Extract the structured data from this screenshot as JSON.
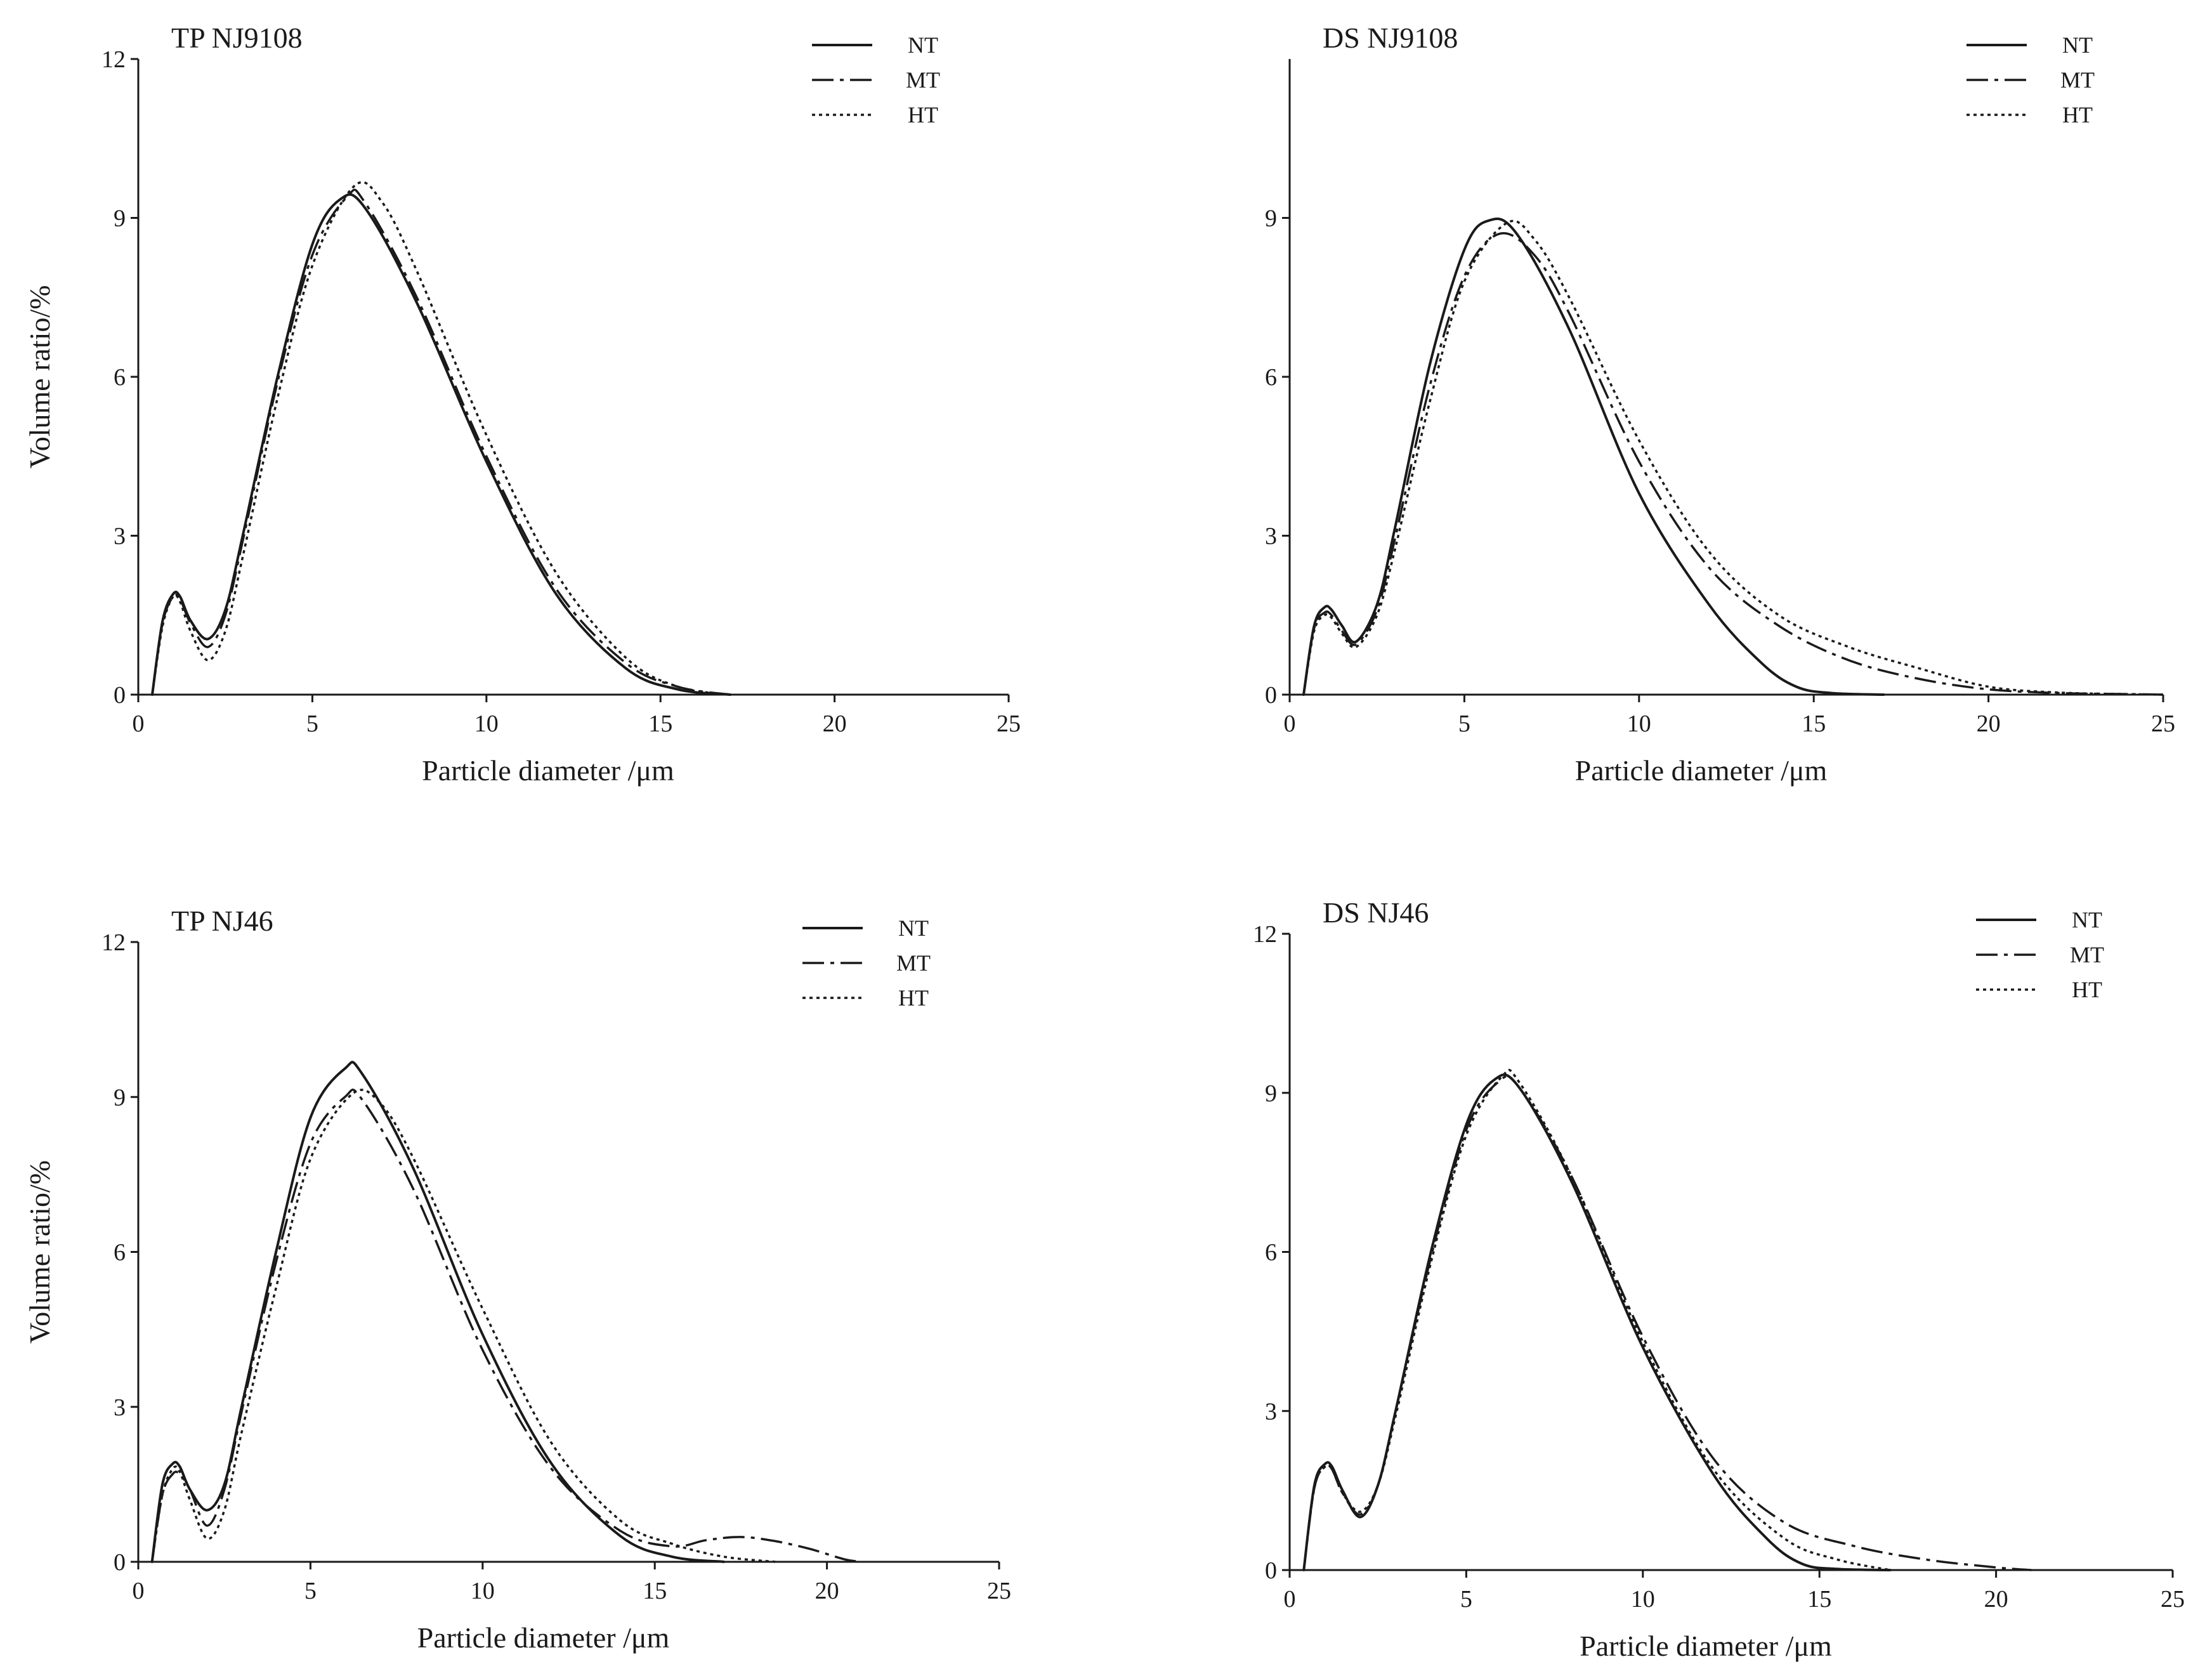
{
  "figure": {
    "panels": [
      "TP NJ9108",
      "DS NJ9108",
      "TP NJ46",
      "DS NJ46"
    ]
  },
  "styles": {
    "line_color": "#1a1a1a",
    "background": "#ffffff"
  },
  "chart_data": [
    {
      "type": "line",
      "title": "TP NJ9108",
      "xlabel": "Particle diameter /μm",
      "ylabel": "Volume ratio/%",
      "xlim": [
        0,
        25
      ],
      "ylim": [
        0,
        12
      ],
      "xticks": [
        0,
        5,
        10,
        15,
        20,
        25
      ],
      "yticks": [
        0,
        3,
        6,
        9,
        12
      ],
      "legend": {
        "placement": "top-right",
        "entries": [
          "NT",
          "MT",
          "HT"
        ]
      },
      "series": [
        {
          "name": "NT",
          "style": "solid",
          "x": [
            0.4,
            0.7,
            1.0,
            1.2,
            1.5,
            2.0,
            2.5,
            3.0,
            4.0,
            5.0,
            5.8,
            6.5,
            8.0,
            10.0,
            12.0,
            14.0,
            15.5,
            17.0
          ],
          "y": [
            0,
            1.4,
            1.9,
            1.85,
            1.4,
            1.05,
            1.6,
            3.0,
            6.0,
            8.5,
            9.35,
            9.2,
            7.4,
            4.4,
            1.9,
            0.5,
            0.1,
            0
          ]
        },
        {
          "name": "MT",
          "style": "dashdot",
          "x": [
            0.4,
            0.7,
            1.0,
            1.2,
            1.5,
            2.0,
            2.5,
            3.0,
            4.0,
            5.0,
            6.0,
            6.5,
            8.0,
            10.0,
            12.0,
            14.0,
            15.5,
            17.0
          ],
          "y": [
            0,
            1.35,
            1.85,
            1.8,
            1.35,
            0.9,
            1.5,
            2.9,
            5.9,
            8.3,
            9.4,
            9.3,
            7.5,
            4.5,
            2.0,
            0.6,
            0.15,
            0
          ]
        },
        {
          "name": "HT",
          "style": "dotted",
          "x": [
            0.4,
            0.7,
            1.0,
            1.2,
            1.5,
            2.0,
            2.5,
            3.0,
            4.0,
            5.0,
            6.2,
            7.0,
            8.0,
            10.0,
            12.0,
            14.0,
            15.5,
            17.0
          ],
          "y": [
            0,
            1.3,
            1.85,
            1.75,
            1.2,
            0.65,
            1.2,
            2.6,
            5.6,
            8.1,
            9.6,
            9.3,
            8.0,
            4.9,
            2.3,
            0.7,
            0.15,
            0
          ]
        }
      ]
    },
    {
      "type": "line",
      "title": "DS NJ9108",
      "xlabel": "Particle diameter /μm",
      "ylabel": "",
      "xlim": [
        0,
        25
      ],
      "ylim": [
        0,
        12
      ],
      "xticks": [
        0,
        5,
        10,
        15,
        20,
        25
      ],
      "yticks": [
        0,
        3,
        6,
        9
      ],
      "legend": {
        "placement": "top-right",
        "entries": [
          "NT",
          "MT",
          "HT"
        ]
      },
      "series": [
        {
          "name": "NT",
          "style": "solid",
          "x": [
            0.4,
            0.7,
            1.0,
            1.2,
            1.5,
            1.9,
            2.5,
            3.0,
            4.0,
            5.0,
            5.7,
            6.5,
            8.0,
            10.0,
            12.0,
            13.5,
            14.5,
            15.5,
            17.0
          ],
          "y": [
            0,
            1.3,
            1.65,
            1.6,
            1.3,
            1.0,
            1.7,
            3.1,
            6.2,
            8.4,
            8.95,
            8.7,
            6.9,
            3.8,
            1.7,
            0.6,
            0.15,
            0.03,
            0
          ]
        },
        {
          "name": "MT",
          "style": "dashdot",
          "x": [
            0.4,
            0.7,
            1.0,
            1.2,
            1.5,
            1.9,
            2.5,
            3.0,
            4.0,
            5.0,
            6.0,
            7.0,
            8.0,
            10.0,
            12.0,
            14.0,
            16.0,
            18.0,
            20.0,
            22.0,
            24.0,
            25.0
          ],
          "y": [
            0,
            1.25,
            1.55,
            1.5,
            1.2,
            0.95,
            1.6,
            2.9,
            5.8,
            7.9,
            8.7,
            8.3,
            7.2,
            4.4,
            2.4,
            1.3,
            0.65,
            0.3,
            0.1,
            0.03,
            0.01,
            0
          ]
        },
        {
          "name": "HT",
          "style": "dotted",
          "x": [
            0.4,
            0.7,
            1.0,
            1.2,
            1.5,
            1.9,
            2.5,
            3.0,
            4.0,
            5.0,
            6.2,
            7.0,
            8.0,
            10.0,
            12.0,
            14.0,
            16.0,
            18.0,
            20.0,
            22.0,
            24.0,
            25.0
          ],
          "y": [
            0,
            1.2,
            1.5,
            1.45,
            1.15,
            0.9,
            1.5,
            2.7,
            5.5,
            7.8,
            8.9,
            8.6,
            7.5,
            4.8,
            2.7,
            1.5,
            0.9,
            0.5,
            0.15,
            0.04,
            0.01,
            0
          ]
        }
      ]
    },
    {
      "type": "line",
      "title": "TP NJ46",
      "xlabel": "Particle diameter /μm",
      "ylabel": "Volume ratio/%",
      "xlim": [
        0,
        25
      ],
      "ylim": [
        0,
        12
      ],
      "xticks": [
        0,
        5,
        10,
        15,
        20,
        25
      ],
      "yticks": [
        0,
        3,
        6,
        9,
        12
      ],
      "legend": {
        "placement": "top-right",
        "entries": [
          "NT",
          "MT",
          "HT"
        ]
      },
      "series": [
        {
          "name": "NT",
          "style": "solid",
          "x": [
            0.4,
            0.7,
            1.0,
            1.2,
            1.5,
            2.0,
            2.5,
            3.0,
            4.0,
            5.0,
            6.0,
            6.5,
            8.0,
            10.0,
            12.0,
            14.0,
            15.5,
            17.0
          ],
          "y": [
            0,
            1.5,
            1.9,
            1.85,
            1.4,
            1.0,
            1.5,
            3.0,
            6.0,
            8.6,
            9.55,
            9.45,
            7.6,
            4.4,
            1.9,
            0.5,
            0.1,
            0
          ]
        },
        {
          "name": "MT",
          "style": "dashdot",
          "x": [
            0.4,
            0.7,
            1.0,
            1.2,
            1.5,
            2.0,
            2.5,
            3.0,
            4.0,
            5.0,
            6.0,
            6.5,
            8.0,
            10.0,
            12.0,
            14.0,
            15.5,
            16.5,
            17.5,
            18.5,
            19.5,
            20.5,
            21.0
          ],
          "y": [
            0,
            1.3,
            1.7,
            1.7,
            1.4,
            0.7,
            1.4,
            2.9,
            5.8,
            8.1,
            9.0,
            8.95,
            7.2,
            4.1,
            1.8,
            0.6,
            0.3,
            0.42,
            0.48,
            0.4,
            0.25,
            0.05,
            0
          ]
        },
        {
          "name": "HT",
          "style": "dotted",
          "x": [
            0.4,
            0.7,
            1.0,
            1.2,
            1.5,
            2.0,
            2.5,
            3.0,
            4.0,
            5.0,
            6.2,
            7.0,
            8.0,
            10.0,
            12.0,
            14.0,
            15.5,
            17.0,
            18.5
          ],
          "y": [
            0,
            1.3,
            1.8,
            1.75,
            1.2,
            0.45,
            1.0,
            2.5,
            5.3,
            7.8,
            9.05,
            8.9,
            7.8,
            4.9,
            2.3,
            0.8,
            0.35,
            0.1,
            0
          ]
        }
      ]
    },
    {
      "type": "line",
      "title": "DS NJ46",
      "xlabel": "Particle diameter /μm",
      "ylabel": "",
      "xlim": [
        0,
        25
      ],
      "ylim": [
        0,
        12
      ],
      "xticks": [
        0,
        5,
        10,
        15,
        20,
        25
      ],
      "yticks": [
        0,
        3,
        6,
        9,
        12
      ],
      "legend": {
        "placement": "top-right",
        "entries": [
          "NT",
          "MT",
          "HT"
        ]
      },
      "series": [
        {
          "name": "NT",
          "style": "solid",
          "x": [
            0.4,
            0.7,
            1.0,
            1.2,
            1.5,
            2.0,
            2.5,
            3.0,
            4.0,
            5.0,
            5.8,
            6.5,
            8.0,
            10.0,
            12.0,
            13.5,
            14.5,
            15.5,
            17.0
          ],
          "y": [
            0,
            1.6,
            2.0,
            1.95,
            1.5,
            1.0,
            1.6,
            3.0,
            6.0,
            8.4,
            9.25,
            9.1,
            7.3,
            4.2,
            1.8,
            0.6,
            0.12,
            0.02,
            0
          ]
        },
        {
          "name": "MT",
          "style": "dashdot",
          "x": [
            0.4,
            0.7,
            1.0,
            1.2,
            1.5,
            2.0,
            2.5,
            3.0,
            4.0,
            5.0,
            5.9,
            6.5,
            8.0,
            10.0,
            12.0,
            14.0,
            16.0,
            18.0,
            20.0,
            21.0
          ],
          "y": [
            0,
            1.55,
            1.95,
            1.9,
            1.45,
            1.05,
            1.6,
            3.0,
            5.9,
            8.3,
            9.2,
            9.1,
            7.4,
            4.4,
            2.1,
            0.9,
            0.45,
            0.2,
            0.05,
            0
          ]
        },
        {
          "name": "HT",
          "style": "dotted",
          "x": [
            0.4,
            0.7,
            1.0,
            1.2,
            1.5,
            2.0,
            2.5,
            3.0,
            4.0,
            5.0,
            6.0,
            6.5,
            8.0,
            10.0,
            12.0,
            14.0,
            15.5,
            17.0
          ],
          "y": [
            0,
            1.55,
            1.95,
            1.9,
            1.45,
            1.1,
            1.6,
            2.9,
            5.8,
            8.2,
            9.3,
            9.2,
            7.4,
            4.3,
            1.9,
            0.6,
            0.2,
            0
          ]
        }
      ]
    }
  ]
}
